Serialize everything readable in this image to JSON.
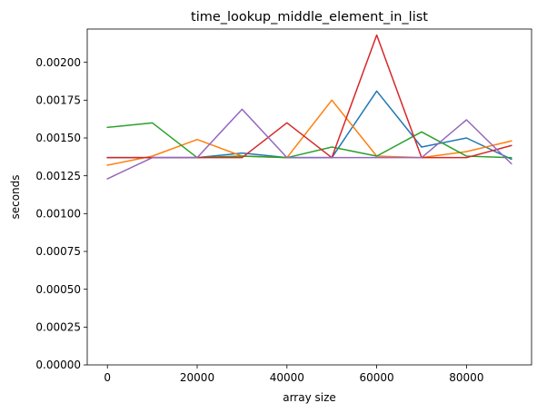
{
  "chart_data": {
    "type": "line",
    "title": "time_lookup_middle_element_in_list",
    "xlabel": "array size",
    "ylabel": "seconds",
    "xlim": [
      -4500,
      94500
    ],
    "ylim": [
      0,
      0.00222
    ],
    "grid": false,
    "legend": "none",
    "x_ticks": [
      0,
      20000,
      40000,
      60000,
      80000
    ],
    "x_tick_labels": [
      "0",
      "20000",
      "40000",
      "60000",
      "80000"
    ],
    "y_ticks": [
      0,
      0.00025,
      0.0005,
      0.00075,
      0.001,
      0.00125,
      0.0015,
      0.00175,
      0.002
    ],
    "y_tick_labels": [
      "0.00000",
      "0.00025",
      "0.00050",
      "0.00075",
      "0.00100",
      "0.00125",
      "0.00150",
      "0.00175",
      "0.00200"
    ],
    "x": [
      0,
      10000,
      20000,
      30000,
      40000,
      50000,
      60000,
      70000,
      80000,
      90000
    ],
    "series": [
      {
        "color": "#1f77b4",
        "values": [
          0.00137,
          0.00137,
          0.00137,
          0.0014,
          0.00137,
          0.00137,
          0.00181,
          0.00144,
          0.0015,
          0.00136
        ]
      },
      {
        "color": "#ff7f0e",
        "values": [
          0.00132,
          0.00138,
          0.00149,
          0.00138,
          0.00137,
          0.00175,
          0.00138,
          0.00137,
          0.00141,
          0.00148
        ]
      },
      {
        "color": "#2ca02c",
        "values": [
          0.00157,
          0.0016,
          0.00137,
          0.00138,
          0.00137,
          0.00144,
          0.00138,
          0.00154,
          0.00138,
          0.00137
        ]
      },
      {
        "color": "#d62728",
        "values": [
          0.00137,
          0.00137,
          0.00137,
          0.00137,
          0.0016,
          0.00137,
          0.00218,
          0.00137,
          0.00137,
          0.00145
        ]
      },
      {
        "color": "#9467bd",
        "values": [
          0.00123,
          0.00137,
          0.00137,
          0.00169,
          0.00137,
          0.00137,
          0.00137,
          0.00137,
          0.00162,
          0.00133
        ]
      }
    ]
  }
}
